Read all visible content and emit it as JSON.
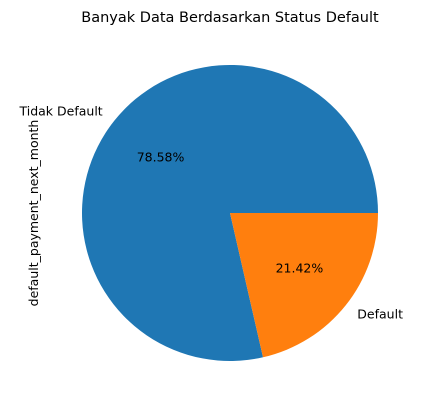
{
  "chart_data": {
    "type": "pie",
    "title": "Banyak Data Berdasarkan Status Default",
    "ylabel": "default_payment_next_month",
    "slices": [
      {
        "label": "Tidak Default",
        "value": 78.58,
        "pct_label": "78.58%",
        "color": "#1f77b4"
      },
      {
        "label": "Default",
        "value": 21.42,
        "pct_label": "21.42%",
        "color": "#ff7f0e"
      }
    ],
    "start_angle_deg": 0,
    "direction": "counterclockwise"
  }
}
